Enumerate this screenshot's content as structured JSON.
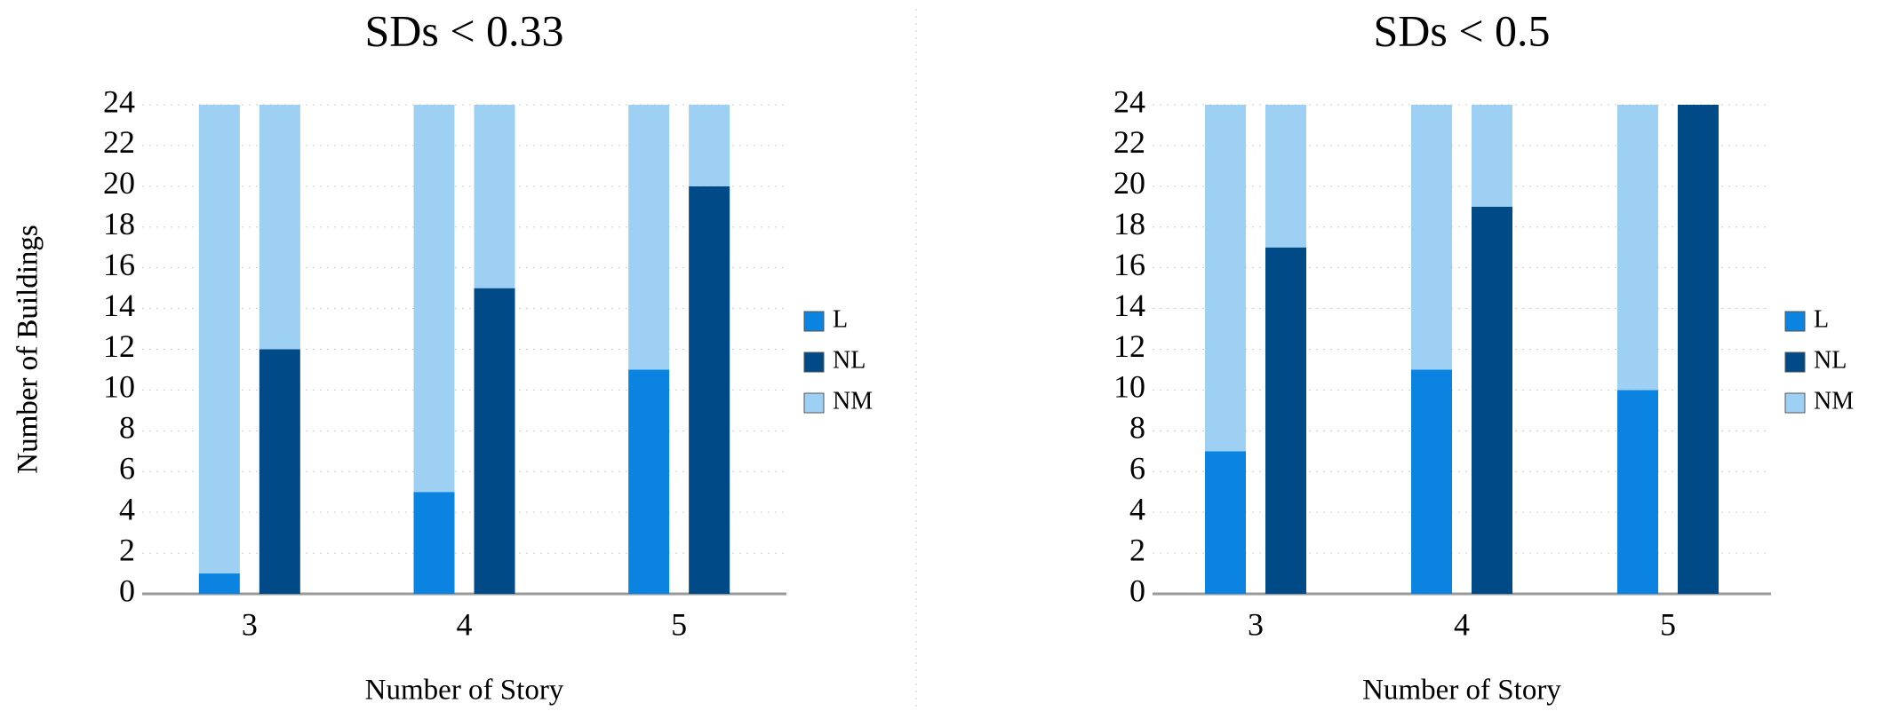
{
  "chart_data": [
    {
      "type": "grouped-stacked-bar",
      "title": "SDs < 0.33",
      "x_label": "Number of Story",
      "y_label": "Number  of  Buildings",
      "categories": [
        "3",
        "4",
        "5"
      ],
      "series": [
        {
          "name": "L",
          "color": "#0a84e0",
          "values": [
            1,
            5,
            11
          ]
        },
        {
          "name": "NL",
          "color": "#004a87",
          "values": [
            12,
            15,
            20
          ]
        },
        {
          "name": "NM",
          "color": "#9dd0f2",
          "values": [
            [
              23,
              12
            ],
            [
              19,
              9
            ],
            [
              13,
              4
            ]
          ]
        }
      ],
      "ylim": [
        0,
        24
      ],
      "yticks": [
        0,
        2,
        4,
        6,
        8,
        10,
        12,
        14,
        16,
        18,
        20,
        22,
        24
      ],
      "grid": true,
      "legend": "right"
    },
    {
      "type": "grouped-stacked-bar",
      "title": "SDs < 0.5",
      "x_label": "Number of Story",
      "y_label": "Number  of  Buildings",
      "categories": [
        "3",
        "4",
        "5"
      ],
      "series": [
        {
          "name": "L",
          "color": "#0a84e0",
          "values": [
            7,
            11,
            10
          ]
        },
        {
          "name": "NL",
          "color": "#004a87",
          "values": [
            17,
            19,
            24
          ]
        },
        {
          "name": "NM",
          "color": "#9dd0f2",
          "values": [
            [
              17,
              7
            ],
            [
              13,
              5
            ],
            [
              14,
              0
            ]
          ]
        }
      ],
      "ylim": [
        0,
        24
      ],
      "yticks": [
        0,
        2,
        4,
        6,
        8,
        10,
        12,
        14,
        16,
        18,
        20,
        22,
        24
      ],
      "grid": true,
      "legend": "right"
    }
  ]
}
